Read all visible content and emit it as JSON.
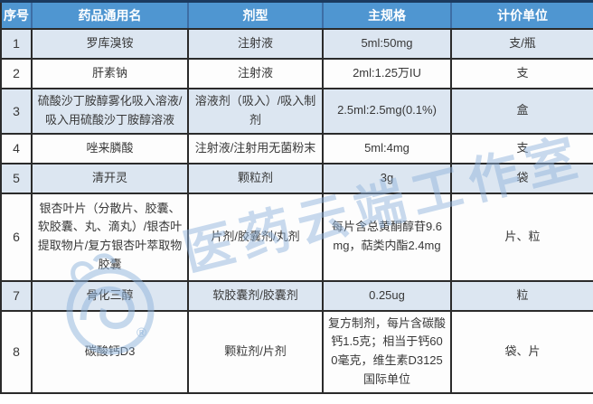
{
  "colors": {
    "header_bg": "#4f96d1",
    "header_text": "#ffffff",
    "header_top_line": "#1b3a5f",
    "header_separator": "#3d6ea5",
    "grid_border": "#2b2b2b",
    "row_shaded_bg": "#dce6f1",
    "row_plain_bg": "#fdfdfd",
    "body_text": "#383838",
    "watermark_blue": "#8fb4dc"
  },
  "watermark": {
    "text": "医药云端工作室",
    "registered_mark": "®",
    "logo": "cloud-swirl-logo"
  },
  "table": {
    "columns": [
      {
        "key": "index",
        "label": "序号"
      },
      {
        "key": "name",
        "label": "药品通用名"
      },
      {
        "key": "form",
        "label": "剂型"
      },
      {
        "key": "spec",
        "label": "主规格"
      },
      {
        "key": "unit",
        "label": "计价单位"
      }
    ],
    "rows": [
      {
        "index": "1",
        "name": "罗库溴铵",
        "form": "注射液",
        "spec": "5ml:50mg",
        "unit": "支/瓶"
      },
      {
        "index": "2",
        "name": "肝素钠",
        "form": "注射液",
        "spec": "2ml:1.25万IU",
        "unit": "支"
      },
      {
        "index": "3",
        "name": "硫酸沙丁胺醇雾化吸入溶液/吸入用硫酸沙丁胺醇溶液",
        "form": "溶液剂（吸入）/吸入制剂",
        "spec": "2.5ml:2.5mg(0.1%)",
        "unit": "盒"
      },
      {
        "index": "4",
        "name": "唑来膦酸",
        "form": "注射液/注射用无菌粉末",
        "spec": "5ml:4mg",
        "unit": "支"
      },
      {
        "index": "5",
        "name": "清开灵",
        "form": "颗粒剂",
        "spec": "3g",
        "unit": "袋"
      },
      {
        "index": "6",
        "name": "银杏叶片（分散片、胶囊、软胶囊、丸、滴丸）/银杏叶提取物片/复方银杏叶萃取物胶囊",
        "form": "片剂/胶囊剂/丸剂",
        "spec": "每片含总黄酮醇苷9.6mg，萜类内酯2.4mg",
        "unit": "片、粒"
      },
      {
        "index": "7",
        "name": "骨化三醇",
        "form": "软胶囊剂/胶囊剂",
        "spec": "0.25ug",
        "unit": "粒"
      },
      {
        "index": "8",
        "name": "碳酸钙D3",
        "form": "颗粒剂/片剂",
        "spec": "复方制剂，每片含碳酸钙1.5克；相当于钙600毫克，维生素D3125国际单位",
        "unit": "袋、片"
      }
    ]
  }
}
